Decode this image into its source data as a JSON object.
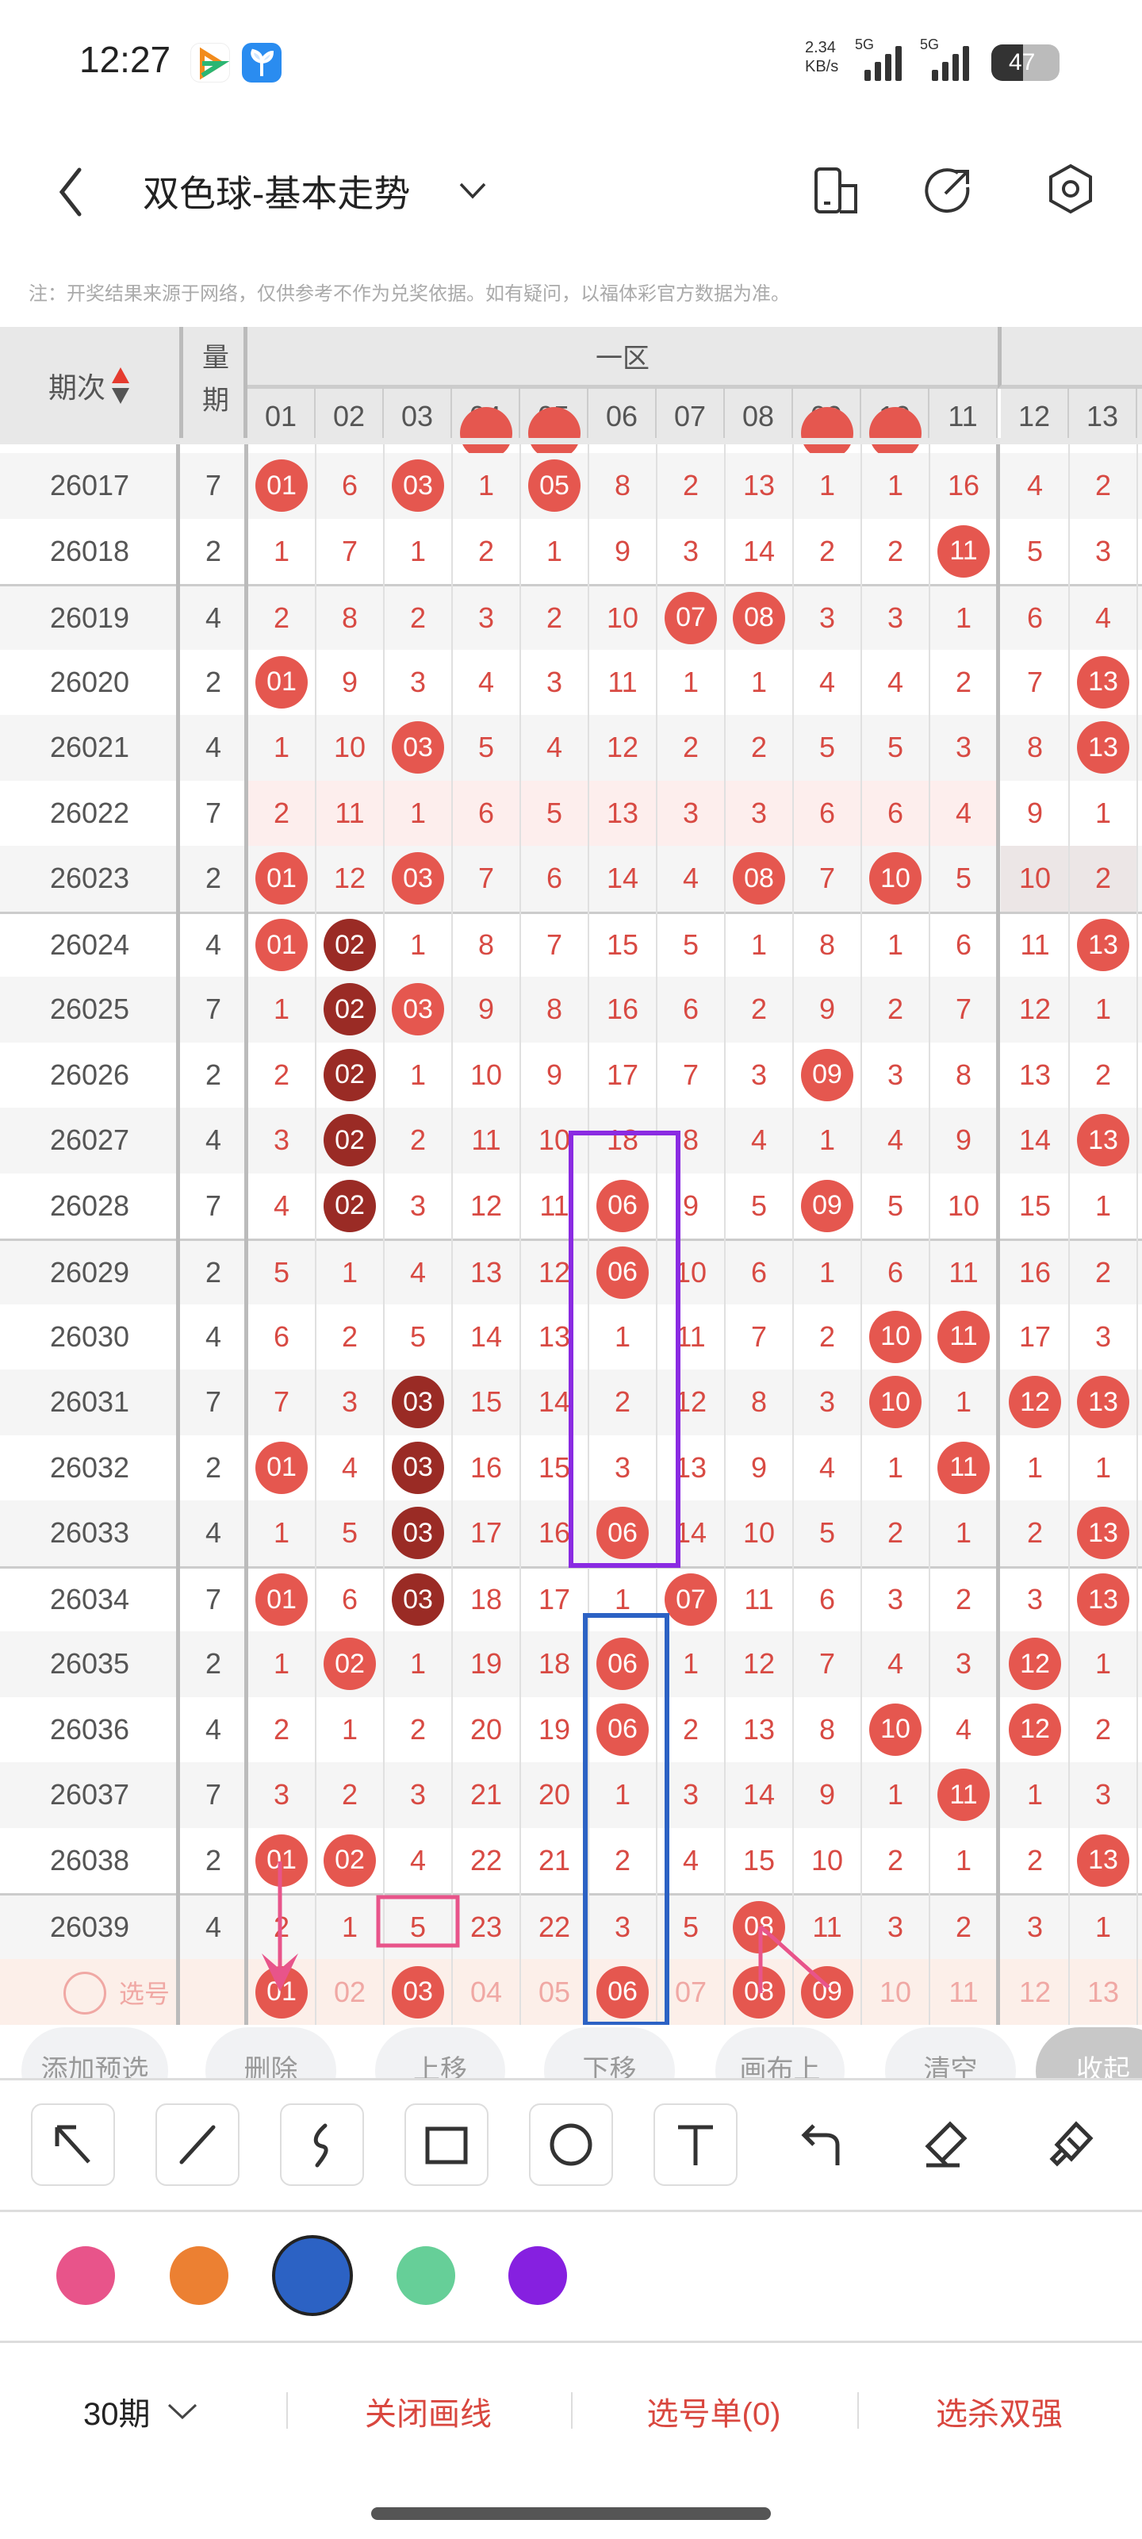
{
  "status_bar": {
    "time": "12:27",
    "net_speed": "2.34",
    "net_unit": "KB/s",
    "signal1": "5G",
    "signal2": "5G",
    "battery": "47"
  },
  "nav": {
    "title": "双色球-基本走势",
    "icons": [
      "back-icon",
      "chevron-down-icon",
      "device-icon",
      "share-icon",
      "settings-icon"
    ]
  },
  "note": "注：开奖结果来源于网络，仅供参考不作为兑奖依据。如有疑问，以福体彩官方数据为准。",
  "table": {
    "col_issue": "期次",
    "col_qty": "量期",
    "zone": "一区",
    "numbers": [
      "01",
      "02",
      "03",
      "04",
      "05",
      "06",
      "07",
      "08",
      "09",
      "10",
      "11",
      "12",
      "13"
    ],
    "rows": [
      {
        "issue": "26017",
        "qty": "7",
        "cells": [
          "01",
          "6",
          "03",
          "1",
          "05",
          "8",
          "2",
          "13",
          "1",
          "1",
          "16",
          "4",
          "2"
        ],
        "hits": [
          0,
          2,
          4
        ],
        "dark": []
      },
      {
        "issue": "26018",
        "qty": "2",
        "cells": [
          "1",
          "7",
          "1",
          "2",
          "1",
          "9",
          "3",
          "14",
          "2",
          "2",
          "11",
          "5",
          "3"
        ],
        "hits": [
          10
        ],
        "dark": []
      },
      {
        "issue": "26019",
        "qty": "4",
        "cells": [
          "2",
          "8",
          "2",
          "3",
          "2",
          "10",
          "07",
          "08",
          "3",
          "3",
          "1",
          "6",
          "4"
        ],
        "hits": [
          6,
          7
        ],
        "dark": []
      },
      {
        "issue": "26020",
        "qty": "2",
        "cells": [
          "01",
          "9",
          "3",
          "4",
          "3",
          "11",
          "1",
          "1",
          "4",
          "4",
          "2",
          "7",
          "13"
        ],
        "hits": [
          0,
          12
        ],
        "dark": []
      },
      {
        "issue": "26021",
        "qty": "4",
        "cells": [
          "1",
          "10",
          "03",
          "5",
          "4",
          "12",
          "2",
          "2",
          "5",
          "5",
          "3",
          "8",
          "13"
        ],
        "hits": [
          2,
          12
        ],
        "dark": []
      },
      {
        "issue": "26022",
        "qty": "7",
        "cells": [
          "2",
          "11",
          "1",
          "6",
          "5",
          "13",
          "3",
          "3",
          "6",
          "6",
          "4",
          "9",
          "1"
        ],
        "hits": [],
        "dark": []
      },
      {
        "issue": "26023",
        "qty": "2",
        "cells": [
          "01",
          "12",
          "03",
          "7",
          "6",
          "14",
          "4",
          "08",
          "7",
          "10",
          "5",
          "10",
          "2"
        ],
        "hits": [
          0,
          2,
          7,
          9
        ],
        "dark": []
      },
      {
        "issue": "26024",
        "qty": "4",
        "cells": [
          "01",
          "02",
          "1",
          "8",
          "7",
          "15",
          "5",
          "1",
          "8",
          "1",
          "6",
          "11",
          "13"
        ],
        "hits": [
          0,
          12
        ],
        "dark": [
          1
        ]
      },
      {
        "issue": "26025",
        "qty": "7",
        "cells": [
          "1",
          "02",
          "03",
          "9",
          "8",
          "16",
          "6",
          "2",
          "9",
          "2",
          "7",
          "12",
          "1"
        ],
        "hits": [
          2
        ],
        "dark": [
          1
        ]
      },
      {
        "issue": "26026",
        "qty": "2",
        "cells": [
          "2",
          "02",
          "1",
          "10",
          "9",
          "17",
          "7",
          "3",
          "09",
          "3",
          "8",
          "13",
          "2"
        ],
        "hits": [
          8
        ],
        "dark": [
          1
        ]
      },
      {
        "issue": "26027",
        "qty": "4",
        "cells": [
          "3",
          "02",
          "2",
          "11",
          "10",
          "18",
          "8",
          "4",
          "1",
          "4",
          "9",
          "14",
          "13"
        ],
        "hits": [
          12
        ],
        "dark": [
          1
        ]
      },
      {
        "issue": "26028",
        "qty": "7",
        "cells": [
          "4",
          "02",
          "3",
          "12",
          "11",
          "06",
          "9",
          "5",
          "09",
          "5",
          "10",
          "15",
          "1"
        ],
        "hits": [
          5,
          8
        ],
        "dark": [
          1
        ]
      },
      {
        "issue": "26029",
        "qty": "2",
        "cells": [
          "5",
          "1",
          "4",
          "13",
          "12",
          "06",
          "10",
          "6",
          "1",
          "6",
          "11",
          "16",
          "2"
        ],
        "hits": [
          5
        ],
        "dark": []
      },
      {
        "issue": "26030",
        "qty": "4",
        "cells": [
          "6",
          "2",
          "5",
          "14",
          "13",
          "1",
          "11",
          "7",
          "2",
          "10",
          "11",
          "17",
          "3"
        ],
        "hits": [
          9,
          10
        ],
        "dark": []
      },
      {
        "issue": "26031",
        "qty": "7",
        "cells": [
          "7",
          "3",
          "03",
          "15",
          "14",
          "2",
          "12",
          "8",
          "3",
          "10",
          "1",
          "12",
          "13"
        ],
        "hits": [
          9,
          11,
          12
        ],
        "dark": [
          2
        ]
      },
      {
        "issue": "26032",
        "qty": "2",
        "cells": [
          "01",
          "4",
          "03",
          "16",
          "15",
          "3",
          "13",
          "9",
          "4",
          "1",
          "11",
          "1",
          "1"
        ],
        "hits": [
          0,
          10
        ],
        "dark": [
          2
        ]
      },
      {
        "issue": "26033",
        "qty": "4",
        "cells": [
          "1",
          "5",
          "03",
          "17",
          "16",
          "06",
          "14",
          "10",
          "5",
          "2",
          "1",
          "2",
          "13"
        ],
        "hits": [
          5,
          12
        ],
        "dark": [
          2
        ]
      },
      {
        "issue": "26034",
        "qty": "7",
        "cells": [
          "01",
          "6",
          "03",
          "18",
          "17",
          "1",
          "07",
          "11",
          "6",
          "3",
          "2",
          "3",
          "13"
        ],
        "hits": [
          0,
          6,
          12
        ],
        "dark": [
          2
        ]
      },
      {
        "issue": "26035",
        "qty": "2",
        "cells": [
          "1",
          "02",
          "1",
          "19",
          "18",
          "06",
          "1",
          "12",
          "7",
          "4",
          "3",
          "12",
          "1"
        ],
        "hits": [
          1,
          5,
          11
        ],
        "dark": []
      },
      {
        "issue": "26036",
        "qty": "4",
        "cells": [
          "2",
          "1",
          "2",
          "20",
          "19",
          "06",
          "2",
          "13",
          "8",
          "10",
          "4",
          "12",
          "2"
        ],
        "hits": [
          5,
          9,
          11
        ],
        "dark": []
      },
      {
        "issue": "26037",
        "qty": "7",
        "cells": [
          "3",
          "2",
          "3",
          "21",
          "20",
          "1",
          "3",
          "14",
          "9",
          "1",
          "11",
          "1",
          "3"
        ],
        "hits": [
          10
        ],
        "dark": []
      },
      {
        "issue": "26038",
        "qty": "2",
        "cells": [
          "01",
          "02",
          "4",
          "22",
          "21",
          "2",
          "4",
          "15",
          "10",
          "2",
          "1",
          "2",
          "13"
        ],
        "hits": [
          0,
          1,
          12
        ],
        "dark": []
      },
      {
        "issue": "26039",
        "qty": "4",
        "cells": [
          "2",
          "1",
          "5",
          "23",
          "22",
          "3",
          "5",
          "08",
          "11",
          "3",
          "2",
          "3",
          "1"
        ],
        "hits": [
          7
        ],
        "dark": []
      }
    ],
    "select_label": "选号",
    "selected": [
      0,
      2,
      5,
      7,
      8
    ]
  },
  "actions": [
    "添加预选",
    "删除",
    "上移",
    "下移",
    "画布上",
    "清空",
    "收起"
  ],
  "tools": [
    "arrow-tool",
    "line-tool",
    "curve-tool",
    "rectangle-tool",
    "circle-tool",
    "text-tool",
    "undo",
    "eraser",
    "clear"
  ],
  "colors": [
    "#e8548a",
    "#ec8032",
    "#2c62c4",
    "#66cf98",
    "#8620e0"
  ],
  "selected_color": "#2c62c4",
  "annotation_colors": {
    "purple": "#8a2be2",
    "blue": "#2c62c4",
    "pink": "#e8548a"
  },
  "bottom_bar": {
    "periods": "30期",
    "close_draw": "关闭画线",
    "pick_list": "选号单(0)",
    "pick_kill": "选杀双强"
  }
}
